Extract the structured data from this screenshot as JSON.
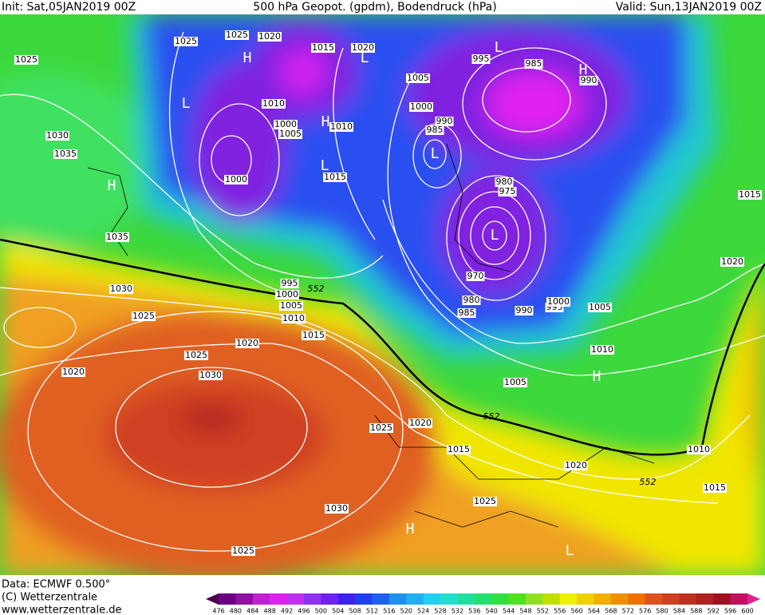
{
  "header": {
    "init": "Init: Sat,05JAN2019 00Z",
    "title": "500 hPa Geopot. (gpdm), Bodendruck (hPa)",
    "valid": "Valid: Sun,13JAN2019 00Z"
  },
  "footer": {
    "data": "Data: ECMWF  0.500°",
    "copyright": "(C) Wetterzentrale",
    "url": "www.wetterzentrale.de"
  },
  "colorbar": {
    "labels": [
      476,
      480,
      484,
      488,
      492,
      496,
      500,
      504,
      508,
      512,
      516,
      520,
      524,
      528,
      532,
      536,
      540,
      544,
      548,
      552,
      556,
      560,
      564,
      568,
      572,
      576,
      580,
      584,
      588,
      592,
      596,
      600
    ],
    "colors": [
      "#4b0050",
      "#6a0080",
      "#9010a0",
      "#c020d0",
      "#e020f0",
      "#c030f0",
      "#9030f0",
      "#7020f0",
      "#4020f0",
      "#2040f0",
      "#2060f0",
      "#2090f0",
      "#20b0f0",
      "#20d0f0",
      "#20e0d0",
      "#20e0a0",
      "#20e070",
      "#30e040",
      "#50e020",
      "#90e020",
      "#c0e000",
      "#f0f000",
      "#f0d000",
      "#f0b000",
      "#f09000",
      "#f07000",
      "#e05020",
      "#d04020",
      "#c03020",
      "#b02020",
      "#a01020",
      "#c01060",
      "#e02090"
    ]
  },
  "map": {
    "isobar_labels": [
      "1025",
      "1025",
      "1025",
      "1020",
      "1015",
      "1020",
      "1030",
      "1035",
      "1035",
      "1030",
      "1025",
      "1020",
      "1025",
      "1030",
      "1020",
      "1015",
      "1010",
      "1005",
      "1000",
      "995",
      "1000",
      "1010",
      "1000",
      "1005",
      "1010",
      "1015",
      "1005",
      "1000",
      "990",
      "985",
      "995",
      "985",
      "990",
      "980",
      "975",
      "970",
      "980",
      "985",
      "990",
      "995",
      "1000",
      "1005",
      "1010",
      "1005",
      "1025",
      "1020",
      "1015",
      "1020",
      "1025",
      "1030",
      "1025",
      "1010",
      "1015",
      "1015",
      "1020"
    ],
    "contour_552_labels": [
      "552",
      "552",
      "552"
    ],
    "pressure_centers": [
      "L",
      "H",
      "L",
      "H",
      "L",
      "L",
      "L",
      "L",
      "H",
      "H",
      "H",
      "H",
      "L"
    ]
  }
}
